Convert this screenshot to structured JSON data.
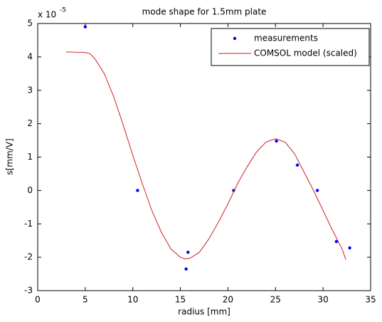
{
  "chart_data": {
    "type": "combo",
    "title": "mode shape for 1.5mm plate",
    "x_label": "radius [mm]",
    "y_label": "s[mm/V]",
    "y_multiplier": "x 10",
    "y_exponent": "-5",
    "xlim": [
      0,
      35
    ],
    "xticks": [
      0,
      5,
      10,
      15,
      20,
      25,
      30,
      35
    ],
    "ylim": [
      -3,
      5
    ],
    "yticks": [
      -3,
      -2,
      -1,
      0,
      1,
      2,
      3,
      4,
      5
    ],
    "grid": false,
    "legend": "upper right",
    "series": [
      {
        "name": "measurements",
        "type": "scatter",
        "color": "#0000ff",
        "x": [
          5,
          10.5,
          15.6,
          15.8,
          20.6,
          25.1,
          27.3,
          29.4,
          31.4,
          32.8
        ],
        "values": [
          4.9,
          0,
          -2.35,
          -1.85,
          0,
          1.48,
          0.76,
          0,
          -1.53,
          -1.72
        ]
      },
      {
        "name": "COMSOL model (scaled)",
        "type": "line",
        "color": "#cc2222",
        "x": [
          3,
          4,
          5,
          5.5,
          6,
          7,
          8,
          9,
          10,
          11,
          12,
          13,
          14,
          15,
          15.5,
          16,
          17,
          18,
          19,
          20,
          21,
          22,
          23,
          24,
          25,
          26,
          27,
          28,
          29,
          30,
          31,
          32,
          32.4
        ],
        "values": [
          4.15,
          4.14,
          4.13,
          4.1,
          3.95,
          3.5,
          2.8,
          1.95,
          1.05,
          0.2,
          -0.6,
          -1.25,
          -1.75,
          -2.0,
          -2.05,
          -2.03,
          -1.85,
          -1.45,
          -0.95,
          -0.4,
          0.2,
          0.7,
          1.15,
          1.45,
          1.55,
          1.45,
          1.1,
          0.55,
          0,
          -0.6,
          -1.2,
          -1.75,
          -2.07
        ]
      }
    ]
  }
}
